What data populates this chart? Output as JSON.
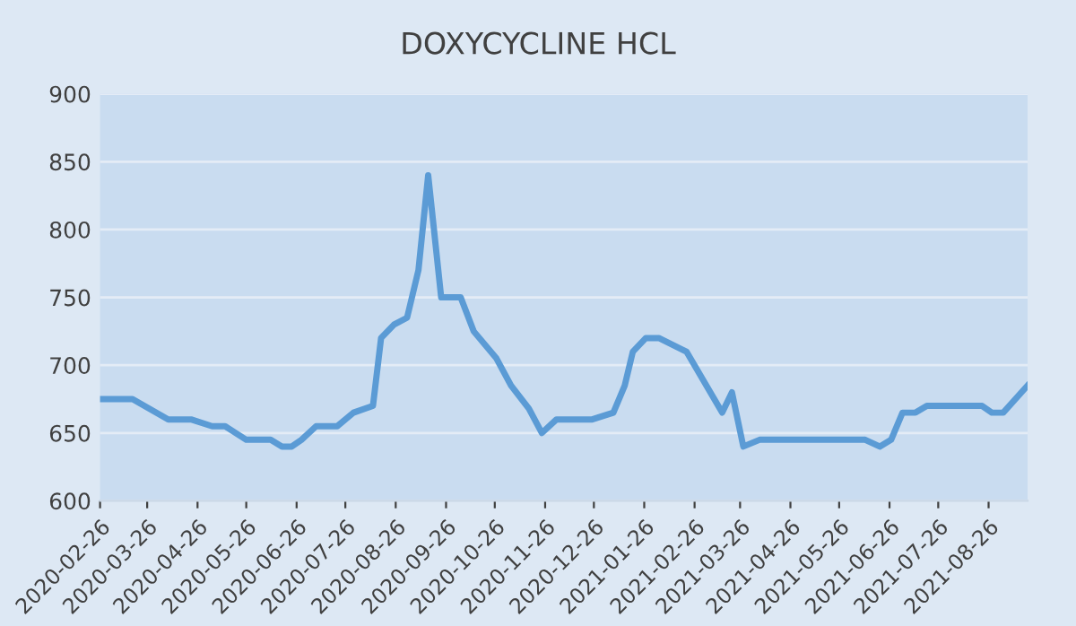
{
  "chart_data": {
    "type": "line",
    "title": "DOXYCYCLINE HCL",
    "x": [
      "2020-02-26",
      "2020-03-17",
      "2020-04-08",
      "2020-04-22",
      "2020-05-05",
      "2020-05-13",
      "2020-05-26",
      "2020-06-10",
      "2020-06-17",
      "2020-06-23",
      "2020-06-29",
      "2020-07-08",
      "2020-07-21",
      "2020-07-31",
      "2020-08-12",
      "2020-08-17",
      "2020-08-25",
      "2020-09-02",
      "2020-09-09",
      "2020-09-15",
      "2020-09-23",
      "2020-10-05",
      "2020-10-13",
      "2020-10-27",
      "2020-11-05",
      "2020-11-16",
      "2020-11-24",
      "2020-12-03",
      "2020-12-25",
      "2021-01-07",
      "2021-01-14",
      "2021-01-19",
      "2021-01-27",
      "2021-02-04",
      "2021-02-21",
      "2021-03-15",
      "2021-03-21",
      "2021-03-28",
      "2021-04-07",
      "2021-06-11",
      "2021-06-20",
      "2021-06-27",
      "2021-07-04",
      "2021-07-12",
      "2021-07-19",
      "2021-08-22",
      "2021-08-28",
      "2021-09-04",
      "2021-09-19"
    ],
    "series": [
      {
        "color": "#5b9bd5",
        "values": [
          675,
          675,
          660,
          660,
          655,
          655,
          645,
          645,
          640,
          640,
          645,
          655,
          655,
          665,
          670,
          720,
          730,
          735,
          770,
          840,
          750,
          750,
          725,
          705,
          685,
          668,
          650,
          660,
          660,
          665,
          685,
          710,
          720,
          720,
          710,
          665,
          680,
          640,
          645,
          645,
          640,
          645,
          665,
          665,
          670,
          670,
          665,
          665,
          685
        ]
      }
    ],
    "ylim": [
      600,
      900
    ],
    "yticks": [
      600,
      650,
      700,
      750,
      800,
      850,
      900
    ],
    "xlim": [
      "2020-02-26",
      "2021-09-19"
    ],
    "xticks": [
      "2020-02-26",
      "2020-03-26",
      "2020-04-26",
      "2020-05-26",
      "2020-06-26",
      "2020-07-26",
      "2020-08-26",
      "2020-09-26",
      "2020-10-26",
      "2020-11-26",
      "2020-12-26",
      "2021-01-26",
      "2021-02-26",
      "2021-03-26",
      "2021-04-26",
      "2021-05-26",
      "2021-06-26",
      "2021-07-26",
      "2021-08-26"
    ],
    "grid": "y",
    "marker": "none",
    "line_style": "solid"
  }
}
